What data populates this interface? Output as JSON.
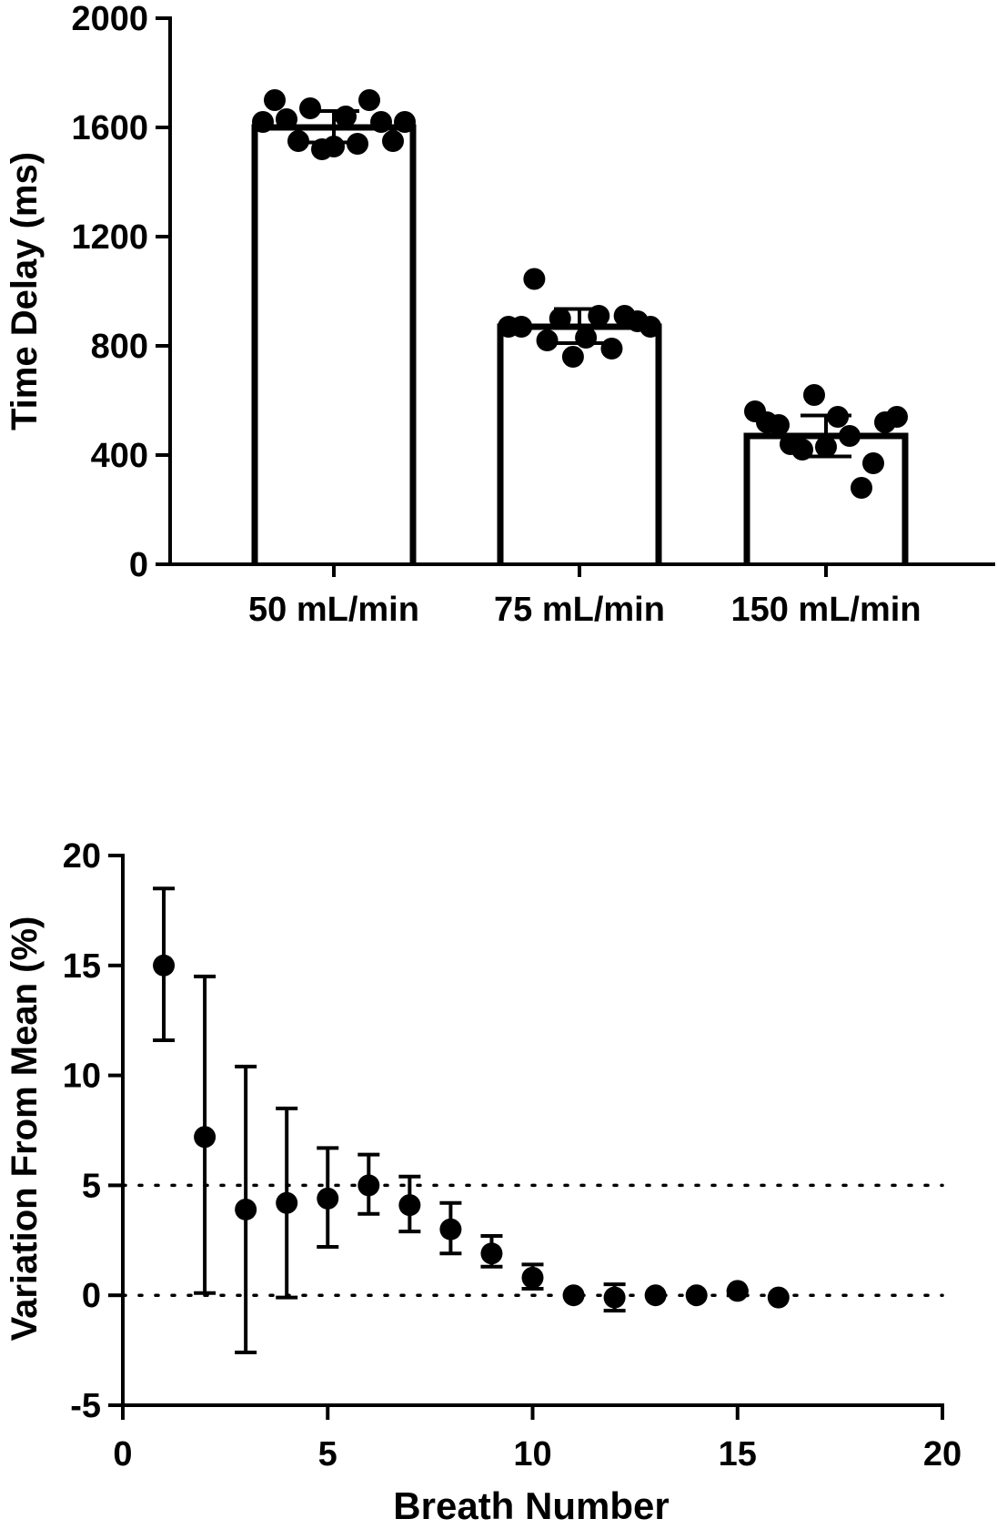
{
  "chart_data": [
    {
      "type": "bar",
      "title": "",
      "xlabel": "",
      "ylabel": "Time Delay (ms)",
      "ylim": [
        0,
        2000
      ],
      "yticks": [
        "0",
        "400",
        "800",
        "1200",
        "1600",
        "2000"
      ],
      "categories": [
        "50 mL/min",
        "75 mL/min",
        "150 mL/min"
      ],
      "values": [
        1600,
        870,
        470
      ],
      "error": [
        [
          1545,
          1660
        ],
        [
          810,
          935
        ],
        [
          395,
          545
        ]
      ],
      "points": [
        [
          1620,
          1700,
          1630,
          1550,
          1670,
          1520,
          1530,
          1640,
          1540,
          1700,
          1620,
          1550,
          1620
        ],
        [
          870,
          870,
          1045,
          820,
          900,
          760,
          830,
          910,
          790,
          910,
          890,
          870
        ],
        [
          560,
          520,
          510,
          440,
          420,
          620,
          430,
          540,
          470,
          280,
          370,
          520,
          540
        ]
      ]
    },
    {
      "type": "scatter",
      "title": "",
      "xlabel": "Breath Number",
      "ylabel": "Variation From Mean (%)",
      "xlim": [
        0,
        20
      ],
      "ylim": [
        -5,
        20
      ],
      "xticks": [
        "0",
        "5",
        "10",
        "15",
        "20"
      ],
      "yticks": [
        "-5",
        "0",
        "5",
        "10",
        "15",
        "20"
      ],
      "reference_lines": [
        0,
        5
      ],
      "x": [
        1,
        2,
        3,
        4,
        5,
        6,
        7,
        8,
        9,
        10,
        11,
        12,
        13,
        14,
        15,
        16
      ],
      "y": [
        15.0,
        7.2,
        3.9,
        4.2,
        4.4,
        5.0,
        4.1,
        3.0,
        1.9,
        0.8,
        0.0,
        -0.1,
        0.0,
        0.0,
        0.2,
        -0.1
      ],
      "err_low": [
        11.6,
        0.1,
        -2.6,
        -0.1,
        2.2,
        3.7,
        2.9,
        1.9,
        1.3,
        0.3,
        0.0,
        -0.7,
        0.0,
        0.0,
        0.0,
        -0.1
      ],
      "err_high": [
        18.5,
        14.5,
        10.4,
        8.5,
        6.7,
        6.4,
        5.4,
        4.2,
        2.7,
        1.4,
        0.0,
        0.5,
        0.0,
        0.0,
        0.2,
        -0.1
      ]
    }
  ]
}
